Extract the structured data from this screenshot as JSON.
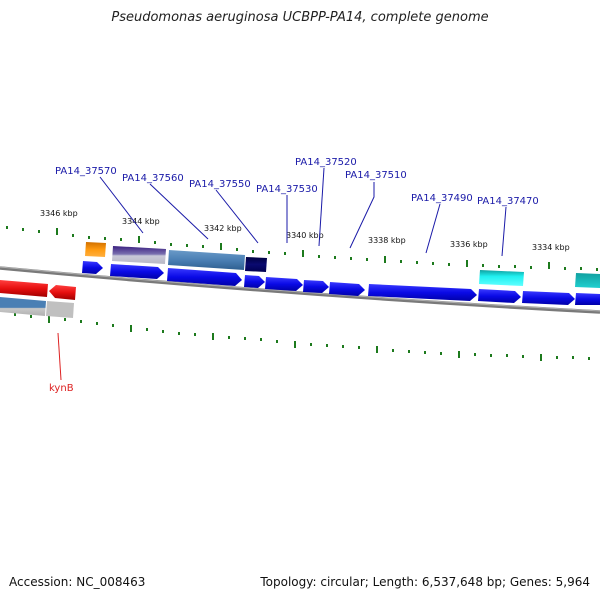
{
  "title": "Pseudomonas aeruginosa UCBPP-PA14, complete genome",
  "footer": {
    "accession": "Accession: NC_008463",
    "info": "Topology: circular; Length: 6,537,648 bp; Genes: 5,964"
  },
  "ruler_labels": [
    "3346 kbp",
    "3344 kbp",
    "3342 kbp",
    "3340 kbp",
    "3338 kbp",
    "3336 kbp",
    "3334 kbp"
  ],
  "gene_labels": [
    "PA14_37570",
    "PA14_37560",
    "PA14_37550",
    "PA14_37530",
    "PA14_37520",
    "PA14_37510",
    "PA14_37490",
    "PA14_37470",
    "kynB"
  ],
  "colors": {
    "forward_gene": "#0a0ae6",
    "reverse_gene": "#e60f0f",
    "backbone": "#808080",
    "ticks": "#1d7a1d",
    "label_blue": "#1a1aa8",
    "label_red": "#dd2222"
  }
}
